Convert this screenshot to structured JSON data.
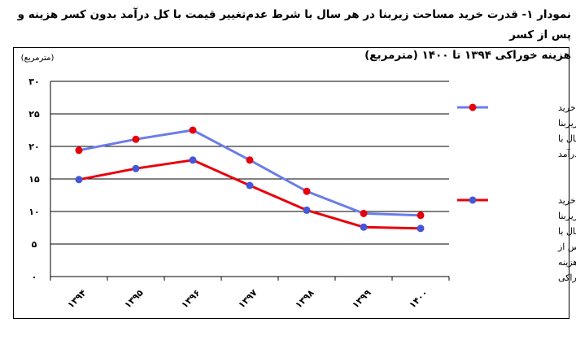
{
  "title": {
    "line1": "نمودار ۱- قدرت خرید مساحت زیربنا در هر سال با شرط عدم‌تغییر قیمت با کل درآمد بدون کسر هزینه و پس از کسر",
    "line2": "هزینه خوراکی ۱۳۹۴ تا ۱۴۰۰ (مترمربع)"
  },
  "chart_data": {
    "type": "line",
    "unit_label": "(مترمربع)",
    "categories": [
      "۱۳۹۴",
      "۱۳۹۵",
      "۱۳۹۶",
      "۱۳۹۷",
      "۱۳۹۸",
      "۱۳۹۹",
      "۱۴۰۰"
    ],
    "y_ticks": [
      {
        "value": 0,
        "label": "۰"
      },
      {
        "value": 5,
        "label": "۵"
      },
      {
        "value": 10,
        "label": "۱۰"
      },
      {
        "value": 15,
        "label": "۱۵"
      },
      {
        "value": 20,
        "label": "۲۰"
      },
      {
        "value": 25,
        "label": "۲۵"
      },
      {
        "value": 30,
        "label": "۳۰"
      }
    ],
    "ylim": [
      0,
      30
    ],
    "grid": true,
    "legend_position": "right",
    "series": [
      {
        "name_lines": [
          "قدرت خرید",
          "مساحت زیربنا",
          "در هر سال با",
          "کل درآمد"
        ],
        "line_color": "#6b7de8",
        "marker_color": "#e8000b",
        "values": [
          19.4,
          21.1,
          22.5,
          17.9,
          13.1,
          9.7,
          9.4
        ]
      },
      {
        "name_lines": [
          "قدرت‌خرید",
          "مساحت زیربنا",
          "در هر سال با",
          "درآمد پس از",
          "کسر هزینه",
          "خوراکی"
        ],
        "line_color": "#e8000b",
        "marker_color": "#4457d6",
        "values": [
          14.9,
          16.6,
          17.9,
          14.0,
          10.2,
          7.6,
          7.4
        ]
      }
    ]
  }
}
